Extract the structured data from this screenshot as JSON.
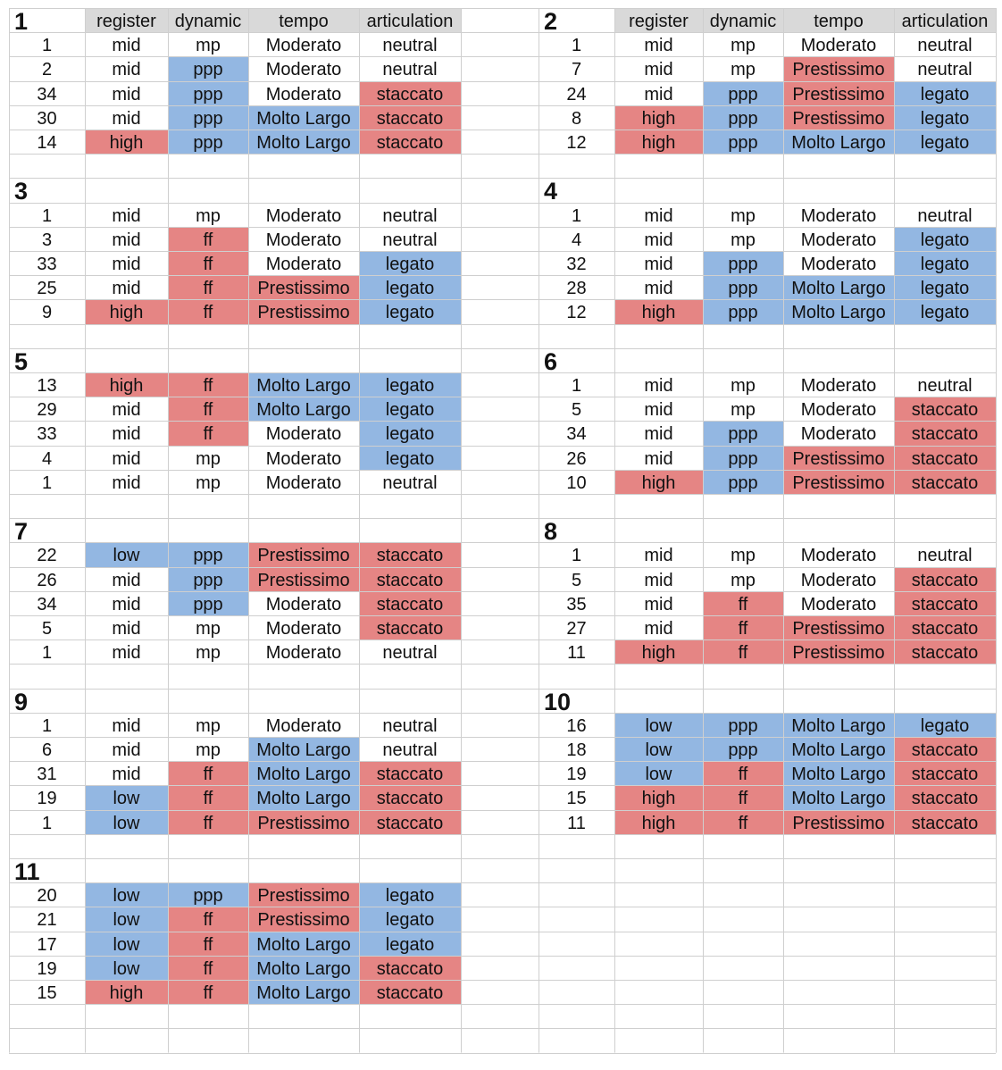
{
  "headers": [
    "register",
    "dynamic",
    "tempo",
    "articulation"
  ],
  "colors": {
    "red": "#e58584",
    "blue": "#93b7e2",
    "header": "#d9d9d9",
    "grid": "#cfcfcf"
  },
  "tables": [
    {
      "title": "1",
      "rows": [
        {
          "cells": [
            "1",
            "mid",
            "mp",
            "Moderato",
            "neutral"
          ],
          "hl": [
            "",
            "",
            "",
            "",
            ""
          ]
        },
        {
          "cells": [
            "2",
            "mid",
            "ppp",
            "Moderato",
            "neutral"
          ],
          "hl": [
            "",
            "",
            "b",
            "",
            ""
          ]
        },
        {
          "cells": [
            "34",
            "mid",
            "ppp",
            "Moderato",
            "staccato"
          ],
          "hl": [
            "",
            "",
            "b",
            "",
            "r"
          ]
        },
        {
          "cells": [
            "30",
            "mid",
            "ppp",
            "Molto Largo",
            "staccato"
          ],
          "hl": [
            "",
            "",
            "b",
            "b",
            "r"
          ]
        },
        {
          "cells": [
            "14",
            "high",
            "ppp",
            "Molto Largo",
            "staccato"
          ],
          "hl": [
            "",
            "r",
            "b",
            "b",
            "r"
          ]
        }
      ]
    },
    {
      "title": "2",
      "rows": [
        {
          "cells": [
            "1",
            "mid",
            "mp",
            "Moderato",
            "neutral"
          ],
          "hl": [
            "",
            "",
            "",
            "",
            ""
          ]
        },
        {
          "cells": [
            "7",
            "mid",
            "mp",
            "Prestissimo",
            "neutral"
          ],
          "hl": [
            "",
            "",
            "",
            "r",
            ""
          ]
        },
        {
          "cells": [
            "24",
            "mid",
            "ppp",
            "Prestissimo",
            "legato"
          ],
          "hl": [
            "",
            "",
            "b",
            "r",
            "b"
          ]
        },
        {
          "cells": [
            "8",
            "high",
            "ppp",
            "Prestissimo",
            "legato"
          ],
          "hl": [
            "",
            "r",
            "b",
            "r",
            "b"
          ]
        },
        {
          "cells": [
            "12",
            "high",
            "ppp",
            "Molto Largo",
            "legato"
          ],
          "hl": [
            "",
            "r",
            "b",
            "b",
            "b"
          ]
        }
      ]
    },
    {
      "title": "3",
      "rows": [
        {
          "cells": [
            "1",
            "mid",
            "mp",
            "Moderato",
            "neutral"
          ],
          "hl": [
            "",
            "",
            "",
            "",
            ""
          ]
        },
        {
          "cells": [
            "3",
            "mid",
            "ff",
            "Moderato",
            "neutral"
          ],
          "hl": [
            "",
            "",
            "r",
            "",
            ""
          ]
        },
        {
          "cells": [
            "33",
            "mid",
            "ff",
            "Moderato",
            "legato"
          ],
          "hl": [
            "",
            "",
            "r",
            "",
            "b"
          ]
        },
        {
          "cells": [
            "25",
            "mid",
            "ff",
            "Prestissimo",
            "legato"
          ],
          "hl": [
            "",
            "",
            "r",
            "r",
            "b"
          ]
        },
        {
          "cells": [
            "9",
            "high",
            "ff",
            "Prestissimo",
            "legato"
          ],
          "hl": [
            "",
            "r",
            "r",
            "r",
            "b"
          ]
        }
      ]
    },
    {
      "title": "4",
      "rows": [
        {
          "cells": [
            "1",
            "mid",
            "mp",
            "Moderato",
            "neutral"
          ],
          "hl": [
            "",
            "",
            "",
            "",
            ""
          ]
        },
        {
          "cells": [
            "4",
            "mid",
            "mp",
            "Moderato",
            "legato"
          ],
          "hl": [
            "",
            "",
            "",
            "",
            "b"
          ]
        },
        {
          "cells": [
            "32",
            "mid",
            "ppp",
            "Moderato",
            "legato"
          ],
          "hl": [
            "",
            "",
            "b",
            "",
            "b"
          ]
        },
        {
          "cells": [
            "28",
            "mid",
            "ppp",
            "Molto Largo",
            "legato"
          ],
          "hl": [
            "",
            "",
            "b",
            "b",
            "b"
          ]
        },
        {
          "cells": [
            "12",
            "high",
            "ppp",
            "Molto Largo",
            "legato"
          ],
          "hl": [
            "",
            "r",
            "b",
            "b",
            "b"
          ]
        }
      ]
    },
    {
      "title": "5",
      "rows": [
        {
          "cells": [
            "13",
            "high",
            "ff",
            "Molto Largo",
            "legato"
          ],
          "hl": [
            "",
            "r",
            "r",
            "b",
            "b"
          ]
        },
        {
          "cells": [
            "29",
            "mid",
            "ff",
            "Molto Largo",
            "legato"
          ],
          "hl": [
            "",
            "",
            "r",
            "b",
            "b"
          ]
        },
        {
          "cells": [
            "33",
            "mid",
            "ff",
            "Moderato",
            "legato"
          ],
          "hl": [
            "",
            "",
            "r",
            "",
            "b"
          ]
        },
        {
          "cells": [
            "4",
            "mid",
            "mp",
            "Moderato",
            "legato"
          ],
          "hl": [
            "",
            "",
            "",
            "",
            "b"
          ]
        },
        {
          "cells": [
            "1",
            "mid",
            "mp",
            "Moderato",
            "neutral"
          ],
          "hl": [
            "",
            "",
            "",
            "",
            ""
          ]
        }
      ]
    },
    {
      "title": "6",
      "rows": [
        {
          "cells": [
            "1",
            "mid",
            "mp",
            "Moderato",
            "neutral"
          ],
          "hl": [
            "",
            "",
            "",
            "",
            ""
          ]
        },
        {
          "cells": [
            "5",
            "mid",
            "mp",
            "Moderato",
            "staccato"
          ],
          "hl": [
            "",
            "",
            "",
            "",
            "r"
          ]
        },
        {
          "cells": [
            "34",
            "mid",
            "ppp",
            "Moderato",
            "staccato"
          ],
          "hl": [
            "",
            "",
            "b",
            "",
            "r"
          ]
        },
        {
          "cells": [
            "26",
            "mid",
            "ppp",
            "Prestissimo",
            "staccato"
          ],
          "hl": [
            "",
            "",
            "b",
            "r",
            "r"
          ]
        },
        {
          "cells": [
            "10",
            "high",
            "ppp",
            "Prestissimo",
            "staccato"
          ],
          "hl": [
            "",
            "r",
            "b",
            "r",
            "r"
          ]
        }
      ]
    },
    {
      "title": "7",
      "rows": [
        {
          "cells": [
            "22",
            "low",
            "ppp",
            "Prestissimo",
            "staccato"
          ],
          "hl": [
            "",
            "b",
            "b",
            "r",
            "r"
          ]
        },
        {
          "cells": [
            "26",
            "mid",
            "ppp",
            "Prestissimo",
            "staccato"
          ],
          "hl": [
            "",
            "",
            "b",
            "r",
            "r"
          ]
        },
        {
          "cells": [
            "34",
            "mid",
            "ppp",
            "Moderato",
            "staccato"
          ],
          "hl": [
            "",
            "",
            "b",
            "",
            "r"
          ]
        },
        {
          "cells": [
            "5",
            "mid",
            "mp",
            "Moderato",
            "staccato"
          ],
          "hl": [
            "",
            "",
            "",
            "",
            "r"
          ]
        },
        {
          "cells": [
            "1",
            "mid",
            "mp",
            "Moderato",
            "neutral"
          ],
          "hl": [
            "",
            "",
            "",
            "",
            ""
          ]
        }
      ]
    },
    {
      "title": "8",
      "rows": [
        {
          "cells": [
            "1",
            "mid",
            "mp",
            "Moderato",
            "neutral"
          ],
          "hl": [
            "",
            "",
            "",
            "",
            ""
          ]
        },
        {
          "cells": [
            "5",
            "mid",
            "mp",
            "Moderato",
            "staccato"
          ],
          "hl": [
            "",
            "",
            "",
            "",
            "r"
          ]
        },
        {
          "cells": [
            "35",
            "mid",
            "ff",
            "Moderato",
            "staccato"
          ],
          "hl": [
            "",
            "",
            "r",
            "",
            "r"
          ]
        },
        {
          "cells": [
            "27",
            "mid",
            "ff",
            "Prestissimo",
            "staccato"
          ],
          "hl": [
            "",
            "",
            "r",
            "r",
            "r"
          ]
        },
        {
          "cells": [
            "11",
            "high",
            "ff",
            "Prestissimo",
            "staccato"
          ],
          "hl": [
            "",
            "r",
            "r",
            "r",
            "r"
          ]
        }
      ]
    },
    {
      "title": "9",
      "rows": [
        {
          "cells": [
            "1",
            "mid",
            "mp",
            "Moderato",
            "neutral"
          ],
          "hl": [
            "",
            "",
            "",
            "",
            ""
          ]
        },
        {
          "cells": [
            "6",
            "mid",
            "mp",
            "Molto Largo",
            "neutral"
          ],
          "hl": [
            "",
            "",
            "",
            "b",
            ""
          ]
        },
        {
          "cells": [
            "31",
            "mid",
            "ff",
            "Molto Largo",
            "staccato"
          ],
          "hl": [
            "",
            "",
            "r",
            "b",
            "r"
          ]
        },
        {
          "cells": [
            "19",
            "low",
            "ff",
            "Molto Largo",
            "staccato"
          ],
          "hl": [
            "",
            "b",
            "r",
            "b",
            "r"
          ]
        },
        {
          "cells": [
            "1",
            "low",
            "ff",
            "Prestissimo",
            "staccato"
          ],
          "hl": [
            "",
            "b",
            "r",
            "r",
            "r"
          ]
        }
      ]
    },
    {
      "title": "10",
      "rows": [
        {
          "cells": [
            "16",
            "low",
            "ppp",
            "Molto Largo",
            "legato"
          ],
          "hl": [
            "",
            "b",
            "b",
            "b",
            "b"
          ]
        },
        {
          "cells": [
            "18",
            "low",
            "ppp",
            "Molto Largo",
            "staccato"
          ],
          "hl": [
            "",
            "b",
            "b",
            "b",
            "r"
          ]
        },
        {
          "cells": [
            "19",
            "low",
            "ff",
            "Molto Largo",
            "staccato"
          ],
          "hl": [
            "",
            "b",
            "r",
            "b",
            "r"
          ]
        },
        {
          "cells": [
            "15",
            "high",
            "ff",
            "Molto Largo",
            "staccato"
          ],
          "hl": [
            "",
            "r",
            "r",
            "b",
            "r"
          ]
        },
        {
          "cells": [
            "11",
            "high",
            "ff",
            "Prestissimo",
            "staccato"
          ],
          "hl": [
            "",
            "r",
            "r",
            "r",
            "r"
          ]
        }
      ]
    },
    {
      "title": "11",
      "rows": [
        {
          "cells": [
            "20",
            "low",
            "ppp",
            "Prestissimo",
            "legato"
          ],
          "hl": [
            "",
            "b",
            "b",
            "r",
            "b"
          ]
        },
        {
          "cells": [
            "21",
            "low",
            "ff",
            "Prestissimo",
            "legato"
          ],
          "hl": [
            "",
            "b",
            "r",
            "r",
            "b"
          ]
        },
        {
          "cells": [
            "17",
            "low",
            "ff",
            "Molto Largo",
            "legato"
          ],
          "hl": [
            "",
            "b",
            "r",
            "b",
            "b"
          ]
        },
        {
          "cells": [
            "19",
            "low",
            "ff",
            "Molto Largo",
            "staccato"
          ],
          "hl": [
            "",
            "b",
            "r",
            "b",
            "r"
          ]
        },
        {
          "cells": [
            "15",
            "high",
            "ff",
            "Molto Largo",
            "staccato"
          ],
          "hl": [
            "",
            "r",
            "r",
            "b",
            "r"
          ]
        }
      ]
    }
  ]
}
